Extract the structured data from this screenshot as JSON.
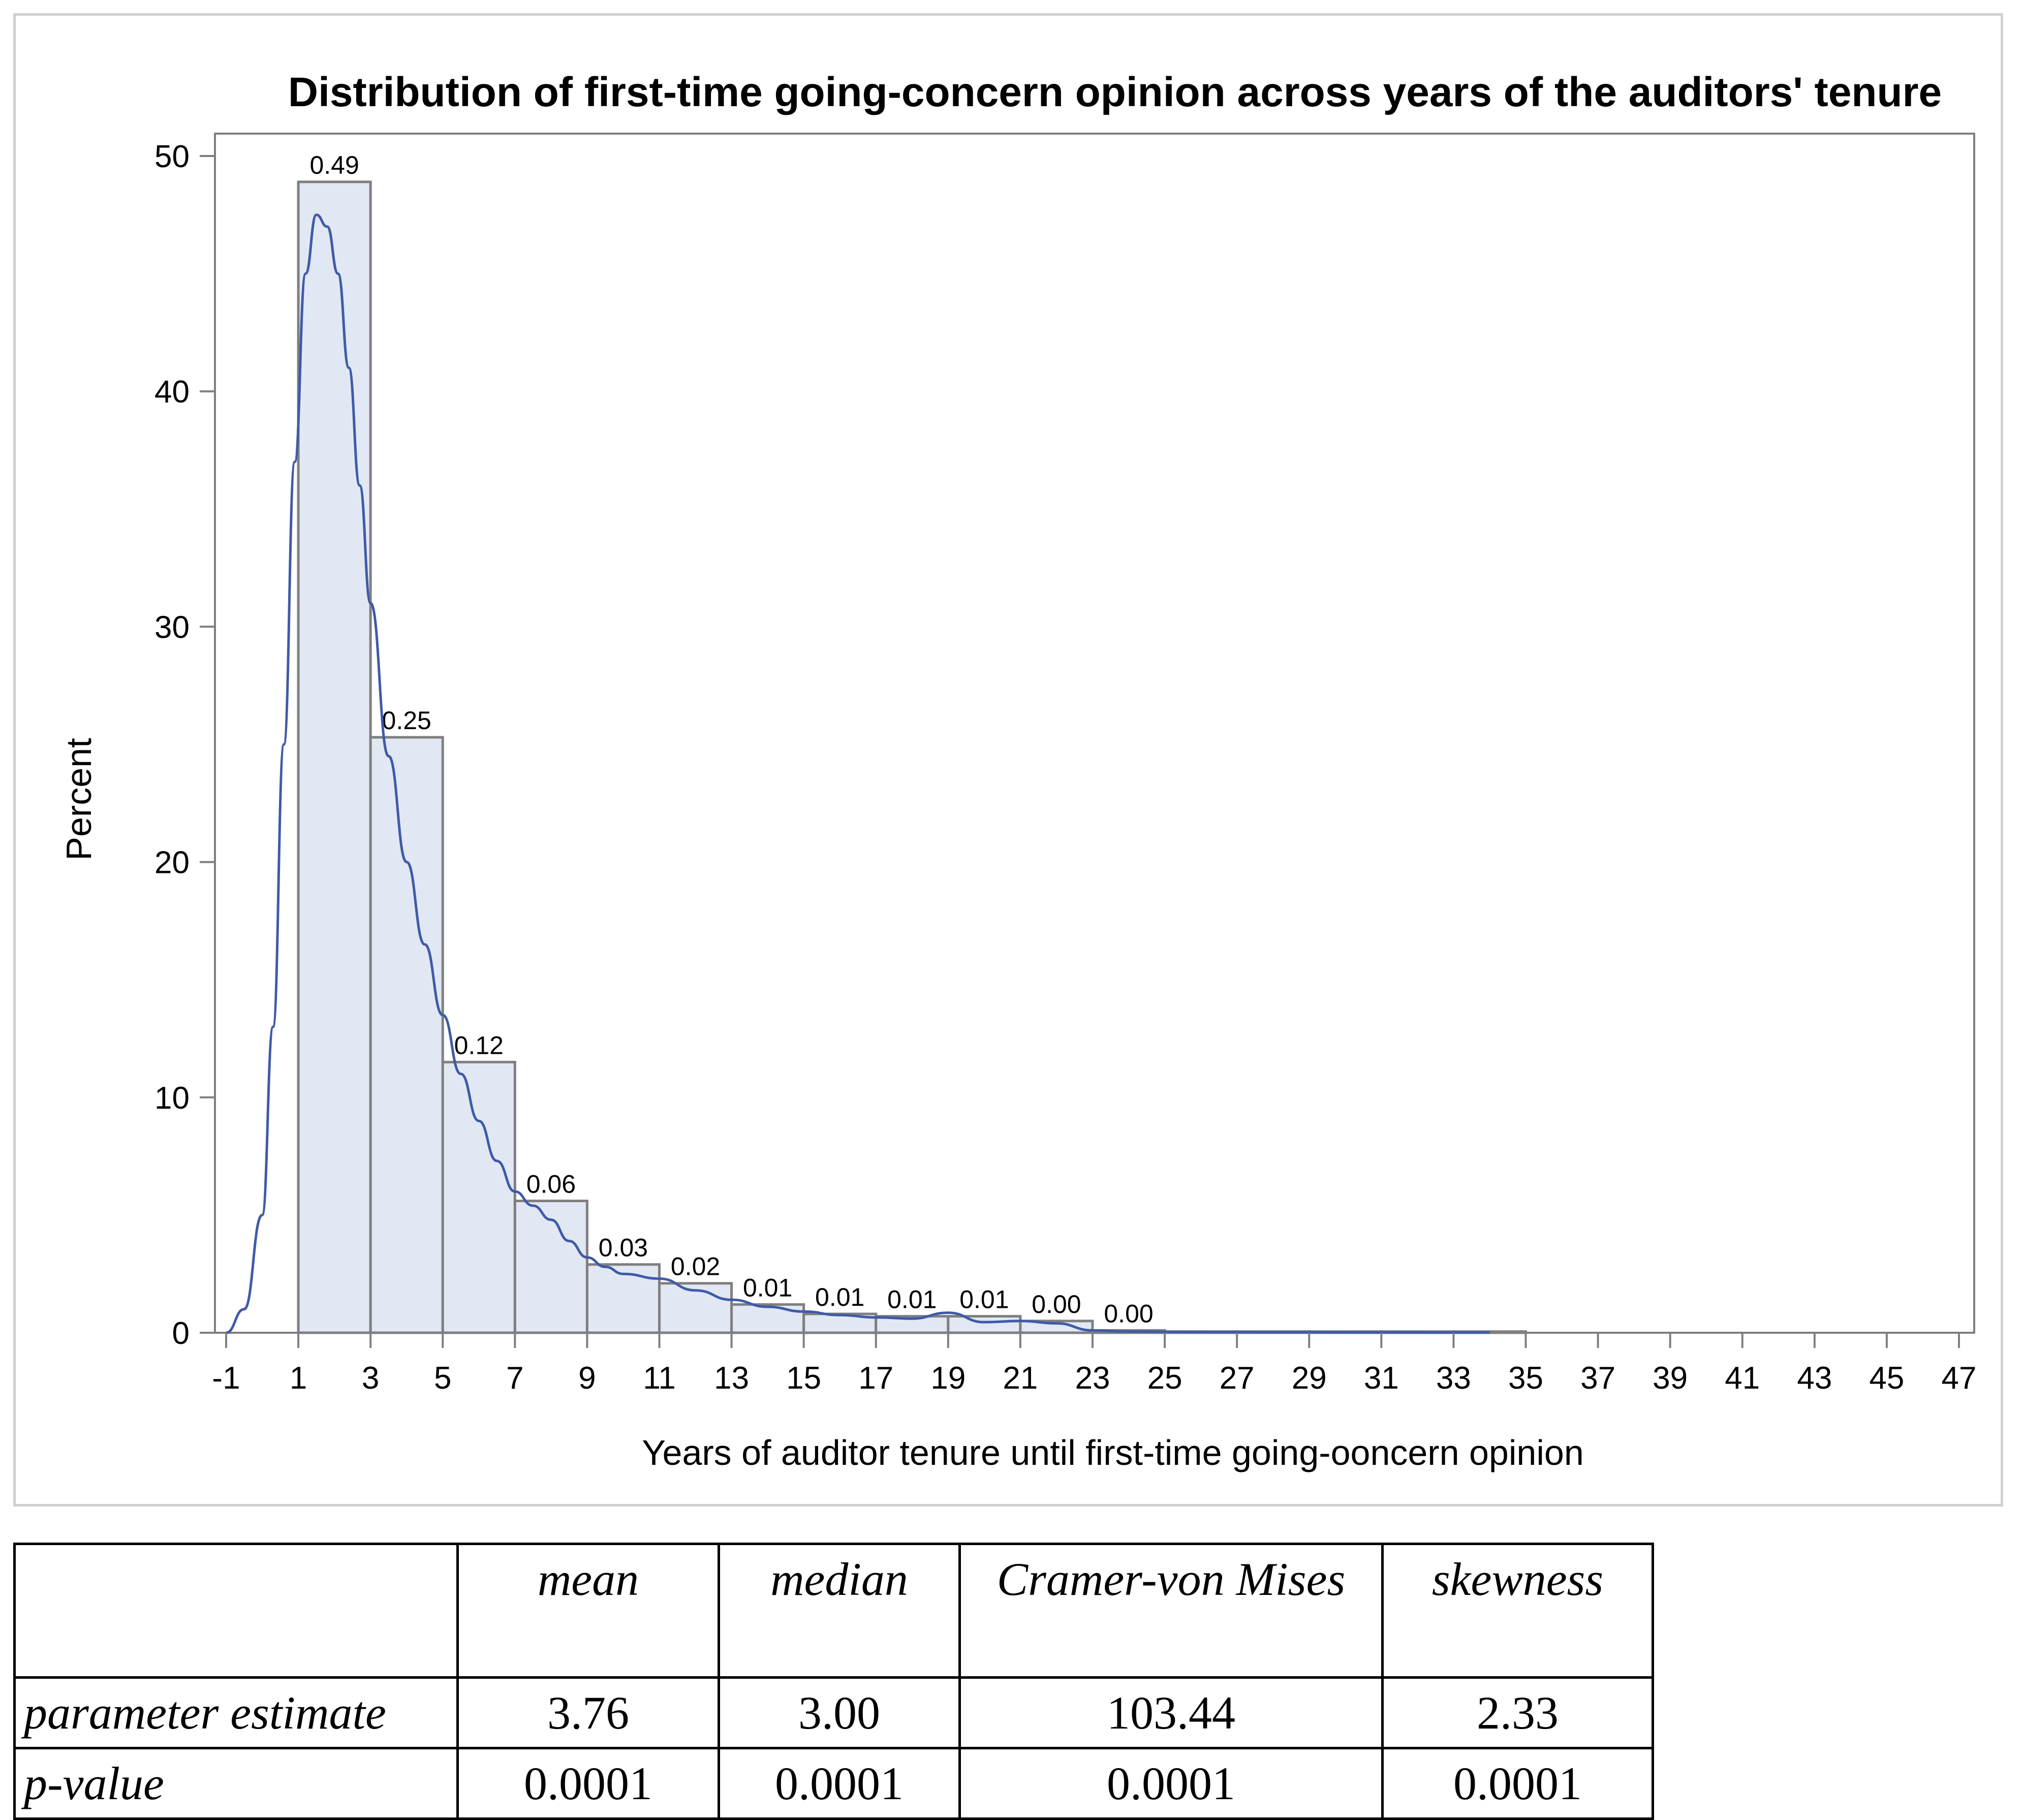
{
  "chart_data": {
    "type": "bar",
    "title": "Distribution of first-time going-concern opinion across years of the auditors' tenure",
    "xlabel": "Years of auditor tenure until first-time going-ooncern opinion",
    "ylabel": "Percent",
    "xlim": [
      -1,
      47
    ],
    "ylim": [
      0,
      50
    ],
    "x_ticks": [
      -1,
      1,
      3,
      5,
      7,
      9,
      11,
      13,
      15,
      17,
      19,
      21,
      23,
      25,
      27,
      29,
      31,
      33,
      35,
      37,
      39,
      41,
      43,
      45,
      47
    ],
    "y_ticks": [
      0,
      10,
      20,
      30,
      40,
      50
    ],
    "grid": false,
    "bins": [
      {
        "x0": 1,
        "x1": 3,
        "value": 48.9,
        "label": "0.49"
      },
      {
        "x0": 3,
        "x1": 5,
        "value": 25.3,
        "label": "0.25"
      },
      {
        "x0": 5,
        "x1": 7,
        "value": 11.5,
        "label": "0.12"
      },
      {
        "x0": 7,
        "x1": 9,
        "value": 5.6,
        "label": "0.06"
      },
      {
        "x0": 9,
        "x1": 11,
        "value": 2.9,
        "label": "0.03"
      },
      {
        "x0": 11,
        "x1": 13,
        "value": 2.1,
        "label": "0.02"
      },
      {
        "x0": 13,
        "x1": 15,
        "value": 1.2,
        "label": "0.01"
      },
      {
        "x0": 15,
        "x1": 17,
        "value": 0.8,
        "label": "0.01"
      },
      {
        "x0": 17,
        "x1": 19,
        "value": 0.7,
        "label": "0.01"
      },
      {
        "x0": 19,
        "x1": 21,
        "value": 0.7,
        "label": "0.01"
      },
      {
        "x0": 21,
        "x1": 23,
        "value": 0.5,
        "label": "0.00"
      },
      {
        "x0": 23,
        "x1": 25,
        "value": 0.1,
        "label": "0.00"
      },
      {
        "x0": 25,
        "x1": 27,
        "value": 0.05
      },
      {
        "x0": 27,
        "x1": 29,
        "value": 0.05
      },
      {
        "x0": 29,
        "x1": 31,
        "value": 0.05
      },
      {
        "x0": 31,
        "x1": 33,
        "value": 0.05
      },
      {
        "x0": 33,
        "x1": 35,
        "value": 0.05
      }
    ],
    "density_curve": {
      "x": [
        -1,
        -0.5,
        0,
        0.3,
        0.6,
        0.9,
        1.2,
        1.5,
        1.8,
        2.1,
        2.4,
        2.7,
        3,
        3.5,
        4,
        4.5,
        5,
        5.5,
        6,
        6.5,
        7,
        7.5,
        8,
        8.5,
        9,
        9.5,
        10,
        11,
        12,
        13,
        14,
        15,
        16,
        17,
        18,
        19,
        20,
        21,
        22,
        23,
        24,
        26,
        30,
        34
      ],
      "y": [
        0,
        1,
        5,
        13,
        25,
        37,
        45,
        47.5,
        47,
        45,
        41,
        36,
        31,
        24.5,
        20,
        16.5,
        13.5,
        11,
        9,
        7.3,
        6,
        5.4,
        4.8,
        3.9,
        3.2,
        2.8,
        2.5,
        2.3,
        1.8,
        1.4,
        1.1,
        0.9,
        0.75,
        0.65,
        0.6,
        0.85,
        0.45,
        0.5,
        0.4,
        0.1,
        0.05,
        0.03,
        0.02,
        0.01
      ]
    }
  },
  "stats_table": {
    "headers": [
      "",
      "mean",
      "median",
      "Cramer-von Mises",
      "skewness"
    ],
    "rows": [
      {
        "label": "parameter estimate",
        "values": [
          "3.76",
          "3.00",
          "103.44",
          "2.33"
        ]
      },
      {
        "label": "p-value",
        "values": [
          "0.0001",
          "0.0001",
          "0.0001",
          "0.0001"
        ]
      }
    ]
  },
  "colors": {
    "bar_fill": "#e1e8f3",
    "bar_stroke": "#7f7f7f",
    "curve": "#3f5aa8",
    "axis": "#7f7f7f",
    "text": "#000000"
  }
}
